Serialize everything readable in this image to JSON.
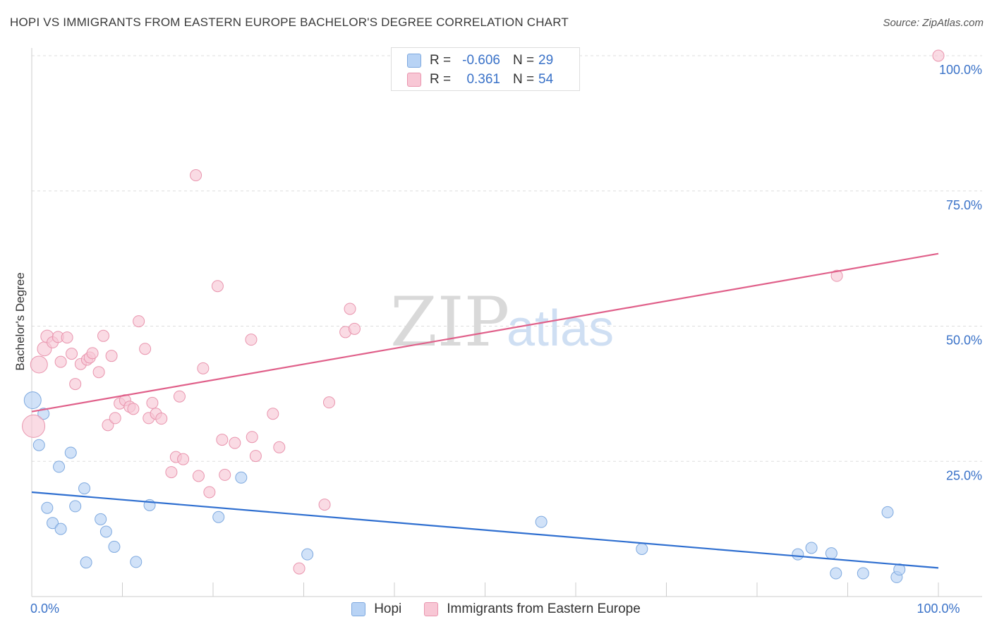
{
  "title": "HOPI VS IMMIGRANTS FROM EASTERN EUROPE BACHELOR'S DEGREE CORRELATION CHART",
  "source": "Source: ZipAtlas.com",
  "watermark": {
    "zip": "ZIP",
    "atlas": "atlas"
  },
  "colors": {
    "hopi_fill": "#b8d3f5",
    "hopi_stroke": "#7ea9df",
    "hopi_line": "#2f6fd0",
    "ee_fill": "#f8c7d5",
    "ee_stroke": "#e995ae",
    "ee_line": "#e0608a",
    "tick_label": "#3a72c8",
    "grid": "#dddddd"
  },
  "stats": [
    {
      "series": "hopi",
      "r_label": "R =",
      "r_value": "-0.606",
      "n_label": "N =",
      "n_value": "29"
    },
    {
      "series": "ee",
      "r_label": "R =",
      "r_value": "0.361",
      "n_label": "N =",
      "n_value": "54"
    }
  ],
  "legend": [
    {
      "series": "hopi",
      "label": "Hopi"
    },
    {
      "series": "ee",
      "label": "Immigrants from Eastern Europe"
    }
  ],
  "chart_data": {
    "type": "scatter",
    "ylabel": "Bachelor's Degree",
    "xlim": [
      0,
      100
    ],
    "ylim": [
      0,
      100
    ],
    "x_tick_labels": [
      {
        "value": 0,
        "label": "0.0%"
      },
      {
        "value": 100,
        "label": "100.0%"
      }
    ],
    "y_tick_labels": [
      {
        "value": 25,
        "label": "25.0%"
      },
      {
        "value": 50,
        "label": "50.0%"
      },
      {
        "value": 75,
        "label": "75.0%"
      },
      {
        "value": 100,
        "label": "100.0%"
      }
    ],
    "grid": "horizontal dashed",
    "series": [
      {
        "id": "hopi",
        "name": "Hopi",
        "trend": {
          "x": [
            0,
            100
          ],
          "y": [
            19.3,
            5.3
          ]
        },
        "points": [
          {
            "x": 0.1,
            "y": 36.3,
            "r": 12
          },
          {
            "x": 1.3,
            "y": 33.8,
            "r": 8
          },
          {
            "x": 0.8,
            "y": 28.0,
            "r": 8
          },
          {
            "x": 4.3,
            "y": 26.6,
            "r": 8
          },
          {
            "x": 3.0,
            "y": 24.0,
            "r": 8
          },
          {
            "x": 5.8,
            "y": 20.0,
            "r": 8
          },
          {
            "x": 1.7,
            "y": 16.4,
            "r": 8
          },
          {
            "x": 4.8,
            "y": 16.7,
            "r": 8
          },
          {
            "x": 2.3,
            "y": 13.6,
            "r": 8
          },
          {
            "x": 3.2,
            "y": 12.5,
            "r": 8
          },
          {
            "x": 7.6,
            "y": 14.3,
            "r": 8
          },
          {
            "x": 8.2,
            "y": 12.0,
            "r": 8
          },
          {
            "x": 9.1,
            "y": 9.2,
            "r": 8
          },
          {
            "x": 6.0,
            "y": 6.3,
            "r": 8
          },
          {
            "x": 11.5,
            "y": 6.4,
            "r": 8
          },
          {
            "x": 13.0,
            "y": 16.9,
            "r": 8
          },
          {
            "x": 20.6,
            "y": 14.7,
            "r": 8
          },
          {
            "x": 23.1,
            "y": 22.0,
            "r": 8
          },
          {
            "x": 30.4,
            "y": 7.8,
            "r": 8
          },
          {
            "x": 56.2,
            "y": 13.8,
            "r": 8
          },
          {
            "x": 67.3,
            "y": 8.8,
            "r": 8
          },
          {
            "x": 84.5,
            "y": 7.8,
            "r": 8
          },
          {
            "x": 86.0,
            "y": 9.0,
            "r": 8
          },
          {
            "x": 88.2,
            "y": 8.0,
            "r": 8
          },
          {
            "x": 88.7,
            "y": 4.3,
            "r": 8
          },
          {
            "x": 91.7,
            "y": 4.3,
            "r": 8
          },
          {
            "x": 94.4,
            "y": 15.6,
            "r": 8
          },
          {
            "x": 95.4,
            "y": 3.6,
            "r": 8
          },
          {
            "x": 95.7,
            "y": 5.0,
            "r": 8
          }
        ]
      },
      {
        "id": "ee",
        "name": "Immigrants from Eastern Europe",
        "trend": {
          "x": [
            0,
            100
          ],
          "y": [
            34.2,
            63.4
          ]
        },
        "points": [
          {
            "x": 0.2,
            "y": 31.5,
            "r": 16
          },
          {
            "x": 0.8,
            "y": 42.9,
            "r": 12
          },
          {
            "x": 1.4,
            "y": 45.8,
            "r": 10
          },
          {
            "x": 1.7,
            "y": 48.1,
            "r": 9
          },
          {
            "x": 2.3,
            "y": 47.0,
            "r": 8
          },
          {
            "x": 2.9,
            "y": 48.0,
            "r": 8
          },
          {
            "x": 3.2,
            "y": 43.4,
            "r": 8
          },
          {
            "x": 3.9,
            "y": 47.9,
            "r": 8
          },
          {
            "x": 4.4,
            "y": 44.9,
            "r": 8
          },
          {
            "x": 4.8,
            "y": 39.3,
            "r": 8
          },
          {
            "x": 5.4,
            "y": 43.0,
            "r": 8
          },
          {
            "x": 6.1,
            "y": 43.8,
            "r": 8
          },
          {
            "x": 6.4,
            "y": 44.2,
            "r": 8
          },
          {
            "x": 6.7,
            "y": 45.0,
            "r": 8
          },
          {
            "x": 7.4,
            "y": 41.5,
            "r": 8
          },
          {
            "x": 7.9,
            "y": 48.2,
            "r": 8
          },
          {
            "x": 8.4,
            "y": 31.7,
            "r": 8
          },
          {
            "x": 8.8,
            "y": 44.5,
            "r": 8
          },
          {
            "x": 9.2,
            "y": 33.0,
            "r": 8
          },
          {
            "x": 9.7,
            "y": 35.7,
            "r": 8
          },
          {
            "x": 10.3,
            "y": 36.3,
            "r": 8
          },
          {
            "x": 10.8,
            "y": 35.1,
            "r": 8
          },
          {
            "x": 11.2,
            "y": 34.7,
            "r": 8
          },
          {
            "x": 11.8,
            "y": 50.9,
            "r": 8
          },
          {
            "x": 12.5,
            "y": 45.8,
            "r": 8
          },
          {
            "x": 12.9,
            "y": 33.0,
            "r": 8
          },
          {
            "x": 13.3,
            "y": 35.8,
            "r": 8
          },
          {
            "x": 13.7,
            "y": 33.8,
            "r": 8
          },
          {
            "x": 14.3,
            "y": 32.9,
            "r": 8
          },
          {
            "x": 15.4,
            "y": 23.0,
            "r": 8
          },
          {
            "x": 15.9,
            "y": 25.8,
            "r": 8
          },
          {
            "x": 16.3,
            "y": 37.0,
            "r": 8
          },
          {
            "x": 16.7,
            "y": 25.4,
            "r": 8
          },
          {
            "x": 18.1,
            "y": 77.9,
            "r": 8
          },
          {
            "x": 18.4,
            "y": 22.3,
            "r": 8
          },
          {
            "x": 18.9,
            "y": 42.2,
            "r": 8
          },
          {
            "x": 19.6,
            "y": 19.3,
            "r": 8
          },
          {
            "x": 20.5,
            "y": 57.4,
            "r": 8
          },
          {
            "x": 21.0,
            "y": 29.0,
            "r": 8
          },
          {
            "x": 21.3,
            "y": 22.5,
            "r": 8
          },
          {
            "x": 22.4,
            "y": 28.4,
            "r": 8
          },
          {
            "x": 24.2,
            "y": 47.5,
            "r": 8
          },
          {
            "x": 24.3,
            "y": 29.5,
            "r": 8
          },
          {
            "x": 24.7,
            "y": 26.0,
            "r": 8
          },
          {
            "x": 26.6,
            "y": 33.8,
            "r": 8
          },
          {
            "x": 27.3,
            "y": 27.6,
            "r": 8
          },
          {
            "x": 29.5,
            "y": 5.2,
            "r": 8
          },
          {
            "x": 32.3,
            "y": 17.0,
            "r": 8
          },
          {
            "x": 32.8,
            "y": 35.9,
            "r": 8
          },
          {
            "x": 34.6,
            "y": 48.9,
            "r": 8
          },
          {
            "x": 35.1,
            "y": 53.2,
            "r": 8
          },
          {
            "x": 35.6,
            "y": 49.5,
            "r": 8
          },
          {
            "x": 88.8,
            "y": 59.3,
            "r": 8
          },
          {
            "x": 100.0,
            "y": 100.0,
            "r": 8
          }
        ]
      }
    ]
  }
}
